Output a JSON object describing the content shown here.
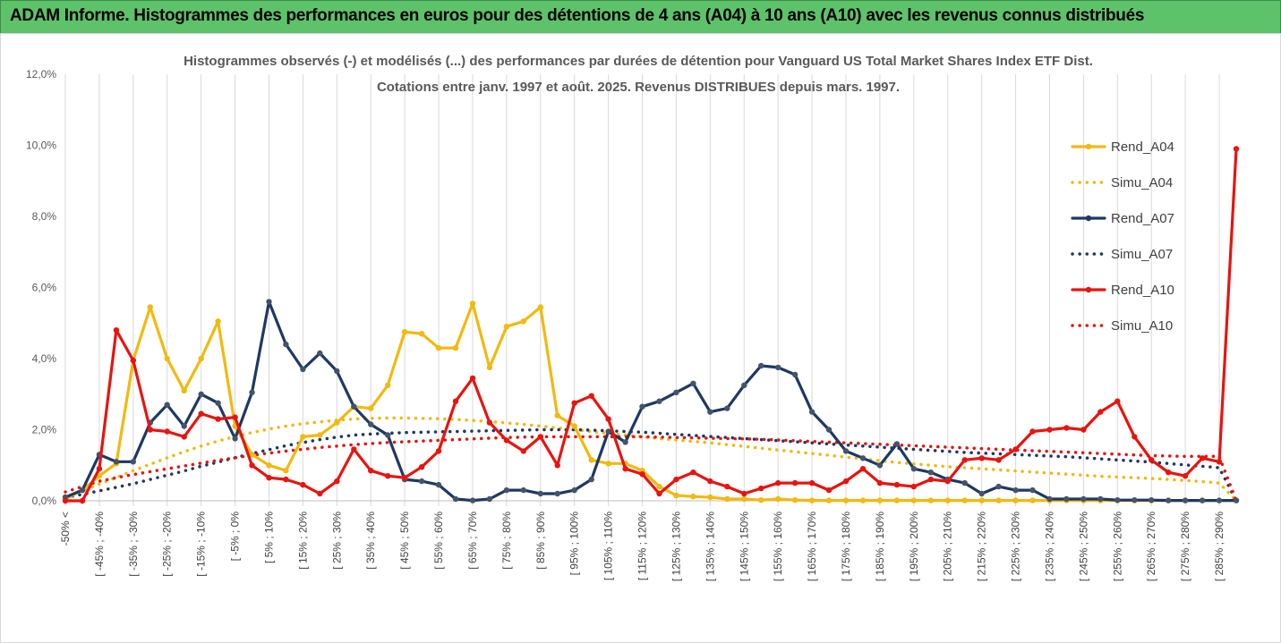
{
  "banner": {
    "title": "ADAM Informe. Histogrammes des performances en euros pour des détentions de 4 ans (A04) à 10 ans (A10) avec les revenus connus distribués"
  },
  "chart_data": {
    "type": "line",
    "subtitle_lines": [
      "Histogrammes observés (-) et modélisés (...) des performances par durées de détention pour Vanguard US Total Market Shares Index ETF Dist.",
      "Cotations entre janv. 1997 et août. 2025. Revenus DISTRIBUES depuis mars. 1997."
    ],
    "ylim": [
      0,
      12
    ],
    "y_ticks": [
      "0,0%",
      "2,0%",
      "4,0%",
      "6,0%",
      "8,0%",
      "10,0%",
      "12,0%"
    ],
    "grid": "vertical",
    "legend_position": "right",
    "x_labels": [
      "-50% <",
      "[ -45% ; -40%",
      "[ -35% ; -30%",
      "[ -25% ; -20%",
      "[ -15% ; -10%",
      "[ -5% ; 0%",
      "[ 5% ; 10%",
      "[ 15% ; 20%",
      "[ 25% ; 30%",
      "[ 35% ; 40%",
      "[ 45% ; 50%",
      "[ 55% ; 60%",
      "[ 65% ; 70%",
      "[ 75% ; 80%",
      "[ 85% ; 90%",
      "[ 95% ; 100%",
      "[ 105% ; 110%",
      "[ 115% ; 120%",
      "[ 125% ; 130%",
      "[ 135% ; 140%",
      "[ 145% ; 150%",
      "[ 155% ; 160%",
      "[ 165% ; 170%",
      "[ 175% ; 180%",
      "[ 185% ; 190%",
      "[ 195% ; 200%",
      "[ 205% ; 210%",
      "[ 215% ; 220%",
      "[ 225% ; 230%",
      "[ 235% ; 240%",
      "[ 245% ; 250%",
      "[ 255% ; 260%",
      "[ 265% ; 270%",
      "[ 275% ; 280%",
      "[ 285% ; 290%"
    ],
    "series": [
      {
        "name": "Rend_A04",
        "style": "solid",
        "color": "#f2b90f",
        "values": [
          0.05,
          0.3,
          0.7,
          1.05,
          3.95,
          5.45,
          4.0,
          3.1,
          4.0,
          5.05,
          2.1,
          1.3,
          1.0,
          0.85,
          1.8,
          1.85,
          2.2,
          2.65,
          2.6,
          3.25,
          4.75,
          4.7,
          4.3,
          4.3,
          5.55,
          3.75,
          4.9,
          5.05,
          5.45,
          2.4,
          2.1,
          1.15,
          1.05,
          1.05,
          0.85,
          0.4,
          0.15,
          0.12,
          0.1,
          0.05,
          0.05,
          0.02,
          0.05,
          0.02,
          0.01,
          0.01,
          0.01,
          0.01,
          0.01,
          0.01,
          0.01,
          0.01,
          0.01,
          0.01,
          0.01,
          0.01,
          0.01,
          0.01,
          0.01,
          0.01,
          0.01,
          0.01,
          0.01,
          0.01,
          0.01,
          0.01,
          0.01,
          0.01,
          0.01,
          0.01
        ]
      },
      {
        "name": "Simu_A04",
        "style": "dotted",
        "color": "#f2b90f",
        "values": [
          0.1,
          0.28,
          0.47,
          0.66,
          0.85,
          1.03,
          1.21,
          1.38,
          1.54,
          1.68,
          1.81,
          1.92,
          2.02,
          2.1,
          2.17,
          2.22,
          2.27,
          2.3,
          2.32,
          2.33,
          2.33,
          2.32,
          2.31,
          2.29,
          2.26,
          2.23,
          2.19,
          2.15,
          2.1,
          2.05,
          2.0,
          1.95,
          1.9,
          1.85,
          1.8,
          1.75,
          1.71,
          1.67,
          1.63,
          1.58,
          1.53,
          1.48,
          1.43,
          1.38,
          1.33,
          1.28,
          1.23,
          1.18,
          1.13,
          1.08,
          1.04,
          1.0,
          0.96,
          0.93,
          0.9,
          0.87,
          0.84,
          0.81,
          0.78,
          0.75,
          0.72,
          0.69,
          0.67,
          0.65,
          0.63,
          0.6,
          0.57,
          0.54,
          0.5,
          0.0
        ]
      },
      {
        "name": "Rend_A07",
        "style": "solid",
        "color": "#1f3864",
        "values": [
          0.1,
          0.3,
          1.3,
          1.1,
          1.1,
          2.2,
          2.7,
          2.1,
          3.0,
          2.75,
          1.75,
          3.05,
          5.6,
          4.4,
          3.7,
          4.15,
          3.65,
          2.65,
          2.15,
          1.85,
          0.6,
          0.55,
          0.45,
          0.05,
          0.01,
          0.05,
          0.3,
          0.3,
          0.2,
          0.2,
          0.3,
          0.6,
          1.95,
          1.65,
          2.65,
          2.8,
          3.05,
          3.3,
          2.5,
          2.6,
          3.25,
          3.8,
          3.75,
          3.55,
          2.5,
          2.0,
          1.4,
          1.2,
          1.0,
          1.6,
          0.9,
          0.8,
          0.6,
          0.5,
          0.2,
          0.4,
          0.3,
          0.3,
          0.05,
          0.05,
          0.05,
          0.05,
          0.02,
          0.02,
          0.02,
          0.01,
          0.01,
          0.01,
          0.01,
          0.01
        ]
      },
      {
        "name": "Simu_A07",
        "style": "dotted",
        "color": "#1f3864",
        "values": [
          0.1,
          0.18,
          0.28,
          0.38,
          0.48,
          0.6,
          0.72,
          0.84,
          0.97,
          1.09,
          1.21,
          1.33,
          1.44,
          1.55,
          1.64,
          1.72,
          1.79,
          1.85,
          1.88,
          1.9,
          1.92,
          1.93,
          1.94,
          1.95,
          1.96,
          1.97,
          1.98,
          1.99,
          2.0,
          2.0,
          2.0,
          1.99,
          1.97,
          1.95,
          1.93,
          1.9,
          1.87,
          1.84,
          1.81,
          1.78,
          1.75,
          1.72,
          1.69,
          1.66,
          1.63,
          1.6,
          1.57,
          1.54,
          1.51,
          1.48,
          1.45,
          1.42,
          1.39,
          1.36,
          1.34,
          1.32,
          1.3,
          1.28,
          1.26,
          1.24,
          1.21,
          1.18,
          1.15,
          1.12,
          1.09,
          1.05,
          1.01,
          0.97,
          0.93,
          0.0
        ]
      },
      {
        "name": "Rend_A10",
        "style": "solid",
        "color": "#e8140f",
        "values": [
          0.0,
          0.0,
          0.9,
          4.8,
          3.95,
          2.0,
          1.95,
          1.8,
          2.45,
          2.3,
          2.35,
          1.0,
          0.65,
          0.6,
          0.45,
          0.2,
          0.55,
          1.45,
          0.85,
          0.7,
          0.65,
          0.95,
          1.4,
          2.8,
          3.45,
          2.2,
          1.7,
          1.4,
          1.8,
          1.0,
          2.75,
          2.95,
          2.3,
          0.9,
          0.75,
          0.2,
          0.6,
          0.8,
          0.55,
          0.4,
          0.2,
          0.35,
          0.5,
          0.5,
          0.5,
          0.3,
          0.55,
          0.9,
          0.5,
          0.45,
          0.4,
          0.6,
          0.55,
          1.15,
          1.2,
          1.15,
          1.45,
          1.95,
          2.0,
          2.05,
          2.0,
          2.5,
          2.8,
          1.8,
          1.15,
          0.8,
          0.7,
          1.2,
          1.1,
          9.9
        ]
      },
      {
        "name": "Simu_A10",
        "style": "dotted",
        "color": "#e8140f",
        "values": [
          0.25,
          0.4,
          0.55,
          0.65,
          0.74,
          0.82,
          0.9,
          0.98,
          1.06,
          1.14,
          1.21,
          1.28,
          1.34,
          1.4,
          1.45,
          1.5,
          1.54,
          1.58,
          1.61,
          1.64,
          1.66,
          1.68,
          1.7,
          1.72,
          1.74,
          1.76,
          1.78,
          1.79,
          1.8,
          1.8,
          1.8,
          1.8,
          1.8,
          1.8,
          1.8,
          1.79,
          1.78,
          1.77,
          1.76,
          1.75,
          1.74,
          1.73,
          1.71,
          1.69,
          1.67,
          1.65,
          1.63,
          1.61,
          1.59,
          1.57,
          1.55,
          1.53,
          1.51,
          1.49,
          1.47,
          1.45,
          1.43,
          1.41,
          1.39,
          1.37,
          1.35,
          1.33,
          1.31,
          1.29,
          1.27,
          1.26,
          1.25,
          1.25,
          1.25,
          0.0
        ]
      }
    ]
  }
}
